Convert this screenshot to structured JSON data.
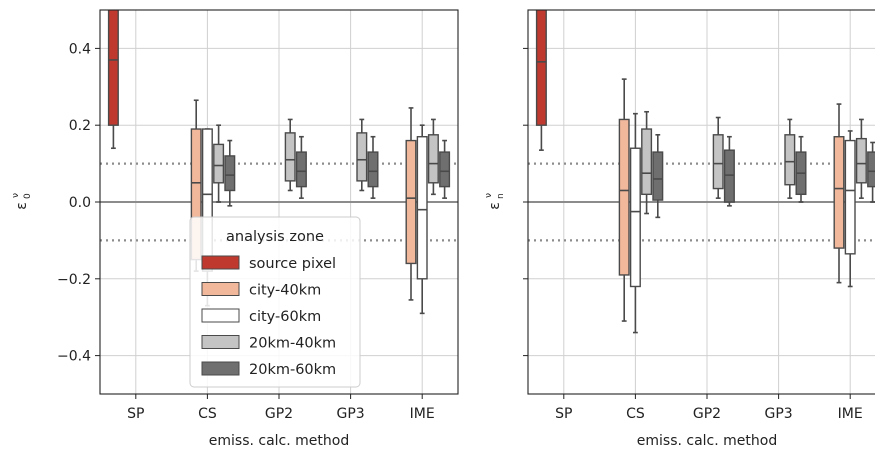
{
  "chart_data": [
    {
      "type": "boxplot",
      "ylabel": "ε_0^ν",
      "ylabel_main": "ε",
      "ylabel_sub": "0",
      "ylabel_sup": "ν",
      "xlabel": "emiss. calc. method",
      "categories": [
        "SP",
        "CS",
        "GP2",
        "GP3",
        "IME"
      ],
      "ylim": [
        -0.5,
        0.5
      ],
      "yticks": [
        0.4,
        0.2,
        0.0,
        -0.2,
        -0.4
      ],
      "ytick_labels": [
        "0.4",
        "0.2",
        "0.0",
        "−0.2",
        "−0.4"
      ],
      "grid": true,
      "reference_lines": [
        {
          "y": 0.0,
          "style": "solid"
        },
        {
          "y": 0.1,
          "style": "dotted"
        },
        {
          "y": -0.1,
          "style": "dotted"
        }
      ],
      "legend": {
        "title": "analysis zone",
        "position": "lower-left",
        "entries": [
          "source pixel",
          "city-40km",
          "city-60km",
          "20km-40km",
          "20km-60km"
        ]
      },
      "series": [
        {
          "name": "source pixel",
          "color": "#c0392f",
          "boxes": [
            {
              "category": "SP",
              "whislo": 0.14,
              "q1": 0.2,
              "med": 0.37,
              "q3": 0.51,
              "whishi": 0.51
            }
          ]
        },
        {
          "name": "city-40km",
          "color": "#f2b89b",
          "boxes": [
            {
              "category": "CS",
              "whislo": -0.18,
              "q1": -0.15,
              "med": 0.05,
              "q3": 0.19,
              "whishi": 0.265
            },
            {
              "category": "IME",
              "whislo": -0.255,
              "q1": -0.16,
              "med": 0.01,
              "q3": 0.16,
              "whishi": 0.245
            }
          ]
        },
        {
          "name": "city-60km",
          "color": "#ffffff",
          "boxes": [
            {
              "category": "CS",
              "whislo": -0.27,
              "q1": -0.18,
              "med": 0.02,
              "q3": 0.19,
              "whishi": 0.19
            },
            {
              "category": "IME",
              "whislo": -0.29,
              "q1": -0.2,
              "med": -0.02,
              "q3": 0.17,
              "whishi": 0.2
            }
          ]
        },
        {
          "name": "20km-40km",
          "color": "#c4c4c4",
          "boxes": [
            {
              "category": "CS",
              "whislo": 0.0,
              "q1": 0.05,
              "med": 0.095,
              "q3": 0.15,
              "whishi": 0.2
            },
            {
              "category": "GP2",
              "whislo": 0.03,
              "q1": 0.055,
              "med": 0.11,
              "q3": 0.18,
              "whishi": 0.215
            },
            {
              "category": "GP3",
              "whislo": 0.03,
              "q1": 0.055,
              "med": 0.11,
              "q3": 0.18,
              "whishi": 0.215
            },
            {
              "category": "IME",
              "whislo": 0.02,
              "q1": 0.05,
              "med": 0.1,
              "q3": 0.175,
              "whishi": 0.215
            }
          ]
        },
        {
          "name": "20km-60km",
          "color": "#6f6f6f",
          "boxes": [
            {
              "category": "CS",
              "whislo": -0.01,
              "q1": 0.03,
              "med": 0.07,
              "q3": 0.12,
              "whishi": 0.16
            },
            {
              "category": "GP2",
              "whislo": 0.01,
              "q1": 0.04,
              "med": 0.08,
              "q3": 0.13,
              "whishi": 0.17
            },
            {
              "category": "GP3",
              "whislo": 0.01,
              "q1": 0.04,
              "med": 0.08,
              "q3": 0.13,
              "whishi": 0.17
            },
            {
              "category": "IME",
              "whislo": 0.01,
              "q1": 0.04,
              "med": 0.08,
              "q3": 0.13,
              "whishi": 0.16
            }
          ]
        }
      ]
    },
    {
      "type": "boxplot",
      "ylabel": "ε_n^ν",
      "ylabel_main": "ε",
      "ylabel_sub": "n",
      "ylabel_sup": "ν",
      "xlabel": "emiss. calc. method",
      "categories": [
        "SP",
        "CS",
        "GP2",
        "GP3",
        "IME"
      ],
      "ylim": [
        -0.5,
        0.5
      ],
      "yticks": [
        0.4,
        0.2,
        0.0,
        -0.2,
        -0.4
      ],
      "shared_y": true,
      "grid": true,
      "reference_lines": [
        {
          "y": 0.0,
          "style": "solid"
        },
        {
          "y": 0.1,
          "style": "dotted"
        },
        {
          "y": -0.1,
          "style": "dotted"
        }
      ],
      "series": [
        {
          "name": "source pixel",
          "color": "#c0392f",
          "boxes": [
            {
              "category": "SP",
              "whislo": 0.135,
              "q1": 0.2,
              "med": 0.365,
              "q3": 0.51,
              "whishi": 0.51
            }
          ]
        },
        {
          "name": "city-40km",
          "color": "#f2b89b",
          "boxes": [
            {
              "category": "CS",
              "whislo": -0.31,
              "q1": -0.19,
              "med": 0.03,
              "q3": 0.215,
              "whishi": 0.32
            },
            {
              "category": "IME",
              "whislo": -0.21,
              "q1": -0.12,
              "med": 0.035,
              "q3": 0.17,
              "whishi": 0.255
            }
          ]
        },
        {
          "name": "city-60km",
          "color": "#ffffff",
          "boxes": [
            {
              "category": "CS",
              "whislo": -0.34,
              "q1": -0.22,
              "med": -0.025,
              "q3": 0.14,
              "whishi": 0.23
            },
            {
              "category": "IME",
              "whislo": -0.22,
              "q1": -0.135,
              "med": 0.03,
              "q3": 0.16,
              "whishi": 0.185
            }
          ]
        },
        {
          "name": "20km-40km",
          "color": "#c4c4c4",
          "boxes": [
            {
              "category": "CS",
              "whislo": -0.03,
              "q1": 0.02,
              "med": 0.075,
              "q3": 0.19,
              "whishi": 0.235
            },
            {
              "category": "GP2",
              "whislo": 0.01,
              "q1": 0.035,
              "med": 0.1,
              "q3": 0.175,
              "whishi": 0.22
            },
            {
              "category": "GP3",
              "whislo": 0.01,
              "q1": 0.045,
              "med": 0.105,
              "q3": 0.175,
              "whishi": 0.215
            },
            {
              "category": "IME",
              "whislo": 0.01,
              "q1": 0.05,
              "med": 0.1,
              "q3": 0.165,
              "whishi": 0.215
            }
          ]
        },
        {
          "name": "20km-60km",
          "color": "#6f6f6f",
          "boxes": [
            {
              "category": "CS",
              "whislo": -0.04,
              "q1": 0.005,
              "med": 0.06,
              "q3": 0.13,
              "whishi": 0.175
            },
            {
              "category": "GP2",
              "whislo": -0.01,
              "q1": 0.0,
              "med": 0.07,
              "q3": 0.135,
              "whishi": 0.17
            },
            {
              "category": "GP3",
              "whislo": 0.0,
              "q1": 0.02,
              "med": 0.075,
              "q3": 0.13,
              "whishi": 0.17
            },
            {
              "category": "IME",
              "whislo": 0.0,
              "q1": 0.04,
              "med": 0.08,
              "q3": 0.13,
              "whishi": 0.155
            }
          ]
        }
      ]
    }
  ]
}
